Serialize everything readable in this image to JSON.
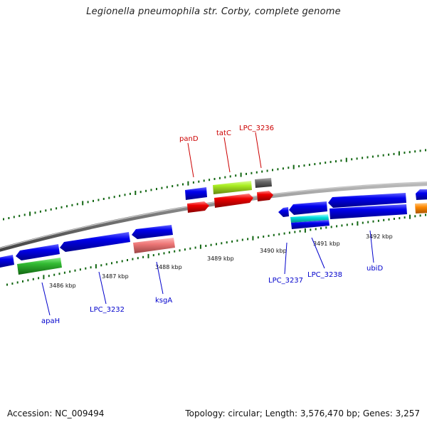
{
  "title": "Legionella pneumophila str. Corby, complete genome",
  "footer": {
    "accession": "Accession: NC_009494",
    "summary": "Topology: circular; Length: 3,576,470 bp; Genes: 3,257"
  },
  "scale_labels": [
    "3486 kbp",
    "3487 kbp",
    "3488 kbp",
    "3489 kbp",
    "3490 kbp",
    "3491 kbp",
    "3492 kbp"
  ],
  "genes_top": [
    "panD",
    "tatC",
    "LPC_3236"
  ],
  "genes_bottom": [
    "apaH",
    "LPC_3232",
    "ksgA",
    "LPC_3237",
    "LPC_3238",
    "ubiD"
  ],
  "colors": {
    "forward_cds": "#0000dd",
    "reverse_cds": "#0000dd",
    "red_feature": "#ee0000",
    "green_feature": "#33bb33",
    "lime_feature": "#aaee22",
    "gray_feature": "#666666",
    "pink_feature": "#ee7777",
    "cyan_feature": "#00dddd",
    "orange_feature": "#ff8800",
    "tick": "#116611",
    "top_label": "#cc0000",
    "bottom_label": "#0000cc"
  }
}
